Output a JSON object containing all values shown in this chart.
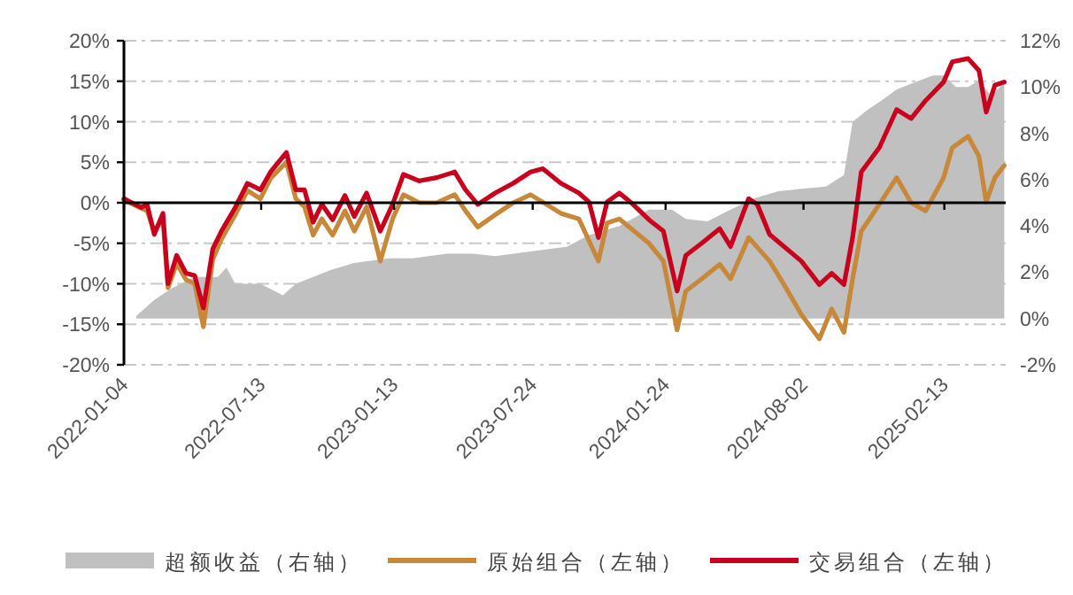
{
  "chart_data": {
    "type": "line",
    "xlim": [
      "2022-01-04",
      "2025-05-09"
    ],
    "xticks": [
      {
        "value": "2022-01-04",
        "label": "2022-01-04"
      },
      {
        "value": "2022-07-13",
        "label": "2022-07-13"
      },
      {
        "value": "2023-01-13",
        "label": "2023-01-13"
      },
      {
        "value": "2023-07-24",
        "label": "2023-07-24"
      },
      {
        "value": "2024-01-24",
        "label": "2024-01-24"
      },
      {
        "value": "2024-08-02",
        "label": "2024-08-02"
      },
      {
        "value": "2025-02-13",
        "label": "2025-02-13"
      }
    ],
    "ylim": [
      -20,
      20
    ],
    "yticks": [
      {
        "value": -20,
        "label": "-20%"
      },
      {
        "value": -15,
        "label": "-15%"
      },
      {
        "value": -10,
        "label": "-10%"
      },
      {
        "value": -5,
        "label": "-5%"
      },
      {
        "value": 0,
        "label": "0%"
      },
      {
        "value": 5,
        "label": "5%"
      },
      {
        "value": 10,
        "label": "10%"
      },
      {
        "value": 15,
        "label": "15%"
      },
      {
        "value": 20,
        "label": "20%"
      }
    ],
    "y2lim": [
      -2,
      12
    ],
    "y2ticks": [
      {
        "value": -2,
        "label": "-2%"
      },
      {
        "value": 0,
        "label": "0%"
      },
      {
        "value": 2,
        "label": "2%"
      },
      {
        "value": 4,
        "label": "4%"
      },
      {
        "value": 6,
        "label": "6%"
      },
      {
        "value": 8,
        "label": "8%"
      },
      {
        "value": 10,
        "label": "10%"
      },
      {
        "value": 12,
        "label": "12%"
      }
    ],
    "grid": "y",
    "legend": "bottom",
    "ref_lines": [
      {
        "axis": "y",
        "value": 0,
        "color": "#000000"
      }
    ],
    "series": [
      {
        "name": "超额收益（右轴）",
        "type": "area",
        "axis": "y2",
        "color": "#c0c0c0",
        "x": [
          "2022-01-21",
          "2022-02-15",
          "2022-03-11",
          "2022-04-12",
          "2022-05-14",
          "2022-05-26",
          "2022-06-07",
          "2022-07-12",
          "2022-08-12",
          "2022-08-30",
          "2022-10-18",
          "2022-11-19",
          "2023-01-06",
          "2023-02-07",
          "2023-03-28",
          "2023-05-02",
          "2023-06-02",
          "2023-07-21",
          "2023-08-15",
          "2023-09-09",
          "2023-10-10",
          "2023-11-21",
          "2024-01-01",
          "2024-02-02",
          "2024-02-21",
          "2024-03-22",
          "2024-04-23",
          "2024-05-27",
          "2024-06-28",
          "2024-07-30",
          "2024-09-02",
          "2024-09-27",
          "2024-10-09",
          "2024-10-29",
          "2024-11-22",
          "2024-12-09",
          "2025-01-03",
          "2025-01-28",
          "2025-02-12",
          "2025-03-01",
          "2025-03-18",
          "2025-04-02",
          "2025-04-19",
          "2025-05-07"
        ],
        "values": [
          0.1,
          0.8,
          1.3,
          1.8,
          1.8,
          2.2,
          1.5,
          1.5,
          1.0,
          1.5,
          2.1,
          2.4,
          2.6,
          2.6,
          2.8,
          2.8,
          2.7,
          2.9,
          3.0,
          3.1,
          3.6,
          4.0,
          4.7,
          4.7,
          4.3,
          4.2,
          4.7,
          5.2,
          5.5,
          5.6,
          5.7,
          6.2,
          8.5,
          9.0,
          9.5,
          9.9,
          10.2,
          10.5,
          10.5,
          10.0,
          10.0,
          10.3,
          9.6,
          10.2
        ]
      },
      {
        "name": "原始组合（左轴）",
        "color": "#c8883a",
        "x": [
          "2022-01-04",
          "2022-02-05",
          "2022-02-15",
          "2022-02-27",
          "2022-03-06",
          "2022-03-18",
          "2022-03-31",
          "2022-04-12",
          "2022-04-24",
          "2022-05-07",
          "2022-05-19",
          "2022-06-07",
          "2022-06-24",
          "2022-07-12",
          "2022-07-26",
          "2022-08-17",
          "2022-08-30",
          "2022-09-11",
          "2022-09-23",
          "2022-10-05",
          "2022-10-20",
          "2022-11-06",
          "2022-11-19",
          "2022-12-06",
          "2022-12-25",
          "2023-01-11",
          "2023-01-26",
          "2023-02-17",
          "2023-03-13",
          "2023-04-07",
          "2023-04-22",
          "2023-05-09",
          "2023-06-02",
          "2023-06-27",
          "2023-07-21",
          "2023-09-01",
          "2023-09-26",
          "2023-10-23",
          "2023-11-04",
          "2023-11-21",
          "2024-01-01",
          "2024-01-21",
          "2024-02-09",
          "2024-02-21",
          "2024-03-14",
          "2024-04-08",
          "2024-04-23",
          "2024-05-18",
          "2024-06-16",
          "2024-07-06",
          "2024-07-30",
          "2024-08-24",
          "2024-09-10",
          "2024-09-27",
          "2024-10-09",
          "2024-10-21",
          "2024-11-15",
          "2024-12-09",
          "2024-12-29",
          "2025-01-18",
          "2025-02-12",
          "2025-02-24",
          "2025-03-18",
          "2025-04-02",
          "2025-04-12",
          "2025-04-24",
          "2025-05-07"
        ],
        "values": [
          0.3,
          -1,
          -3.5,
          -2,
          -10.5,
          -7.5,
          -9.5,
          -10,
          -15.3,
          -7,
          -4.5,
          -1.5,
          1.5,
          0.5,
          3,
          5,
          0.5,
          -0.5,
          -4,
          -2,
          -4,
          -1,
          -3.5,
          -0.5,
          -7.2,
          -2,
          1,
          0,
          0,
          1,
          -1,
          -3,
          -1.5,
          0,
          1,
          -1.3,
          -2,
          -7.2,
          -2.5,
          -2,
          -5,
          -7.2,
          -15.7,
          -10.9,
          -9.4,
          -7.6,
          -9.4,
          -4.3,
          -7.2,
          -10.1,
          -13.8,
          -16.8,
          -13.1,
          -16,
          -9.4,
          -3.5,
          -0.2,
          3.1,
          0,
          -1,
          3.1,
          6.8,
          8.2,
          5.7,
          0.1,
          3.1,
          4.6
        ]
      },
      {
        "name": "交易组合（左轴）",
        "color": "#c8001e",
        "x": [
          "2022-01-04",
          "2022-01-28",
          "2022-02-05",
          "2022-02-15",
          "2022-02-27",
          "2022-03-06",
          "2022-03-18",
          "2022-03-31",
          "2022-04-12",
          "2022-04-24",
          "2022-05-07",
          "2022-05-19",
          "2022-06-07",
          "2022-06-24",
          "2022-07-12",
          "2022-07-26",
          "2022-08-17",
          "2022-08-30",
          "2022-09-11",
          "2022-09-23",
          "2022-10-05",
          "2022-10-20",
          "2022-11-06",
          "2022-11-19",
          "2022-12-06",
          "2022-12-25",
          "2023-01-11",
          "2023-01-26",
          "2023-02-17",
          "2023-03-13",
          "2023-04-07",
          "2023-04-22",
          "2023-05-09",
          "2023-06-02",
          "2023-06-27",
          "2023-07-21",
          "2023-08-07",
          "2023-09-01",
          "2023-09-26",
          "2023-10-10",
          "2023-10-23",
          "2023-11-04",
          "2023-11-21",
          "2023-12-10",
          "2024-01-01",
          "2024-01-21",
          "2024-02-09",
          "2024-02-21",
          "2024-03-14",
          "2024-04-08",
          "2024-04-23",
          "2024-05-18",
          "2024-05-30",
          "2024-06-16",
          "2024-07-06",
          "2024-07-30",
          "2024-08-24",
          "2024-09-10",
          "2024-09-27",
          "2024-10-09",
          "2024-10-21",
          "2024-11-15",
          "2024-12-09",
          "2024-12-29",
          "2025-01-18",
          "2025-02-12",
          "2025-02-24",
          "2025-03-18",
          "2025-04-02",
          "2025-04-12",
          "2025-04-24",
          "2025-05-07"
        ],
        "values": [
          0.5,
          -0.6,
          -0.2,
          -3.9,
          -1.3,
          -10,
          -6.5,
          -8.7,
          -9,
          -13,
          -5.7,
          -3.5,
          -0.6,
          2.4,
          1.6,
          3.8,
          6.2,
          1.6,
          1.6,
          -2.4,
          -0.2,
          -2.1,
          0.9,
          -1.7,
          1.2,
          -3.5,
          -0.2,
          3.5,
          2.7,
          3.1,
          3.8,
          1.6,
          -0.2,
          1.2,
          2.4,
          3.8,
          4.2,
          2.4,
          1.2,
          0.1,
          -4.3,
          0.1,
          1.2,
          -0.2,
          -2.1,
          -3.5,
          -10.9,
          -6.5,
          -5,
          -3.2,
          -5.4,
          0.5,
          -0.2,
          -3.9,
          -5.4,
          -7.2,
          -10.1,
          -8.7,
          -10.1,
          -4.3,
          3.8,
          6.8,
          11.5,
          10.4,
          12.6,
          14.9,
          17.4,
          17.8,
          16.3,
          11.2,
          14.5,
          14.9
        ]
      }
    ]
  }
}
